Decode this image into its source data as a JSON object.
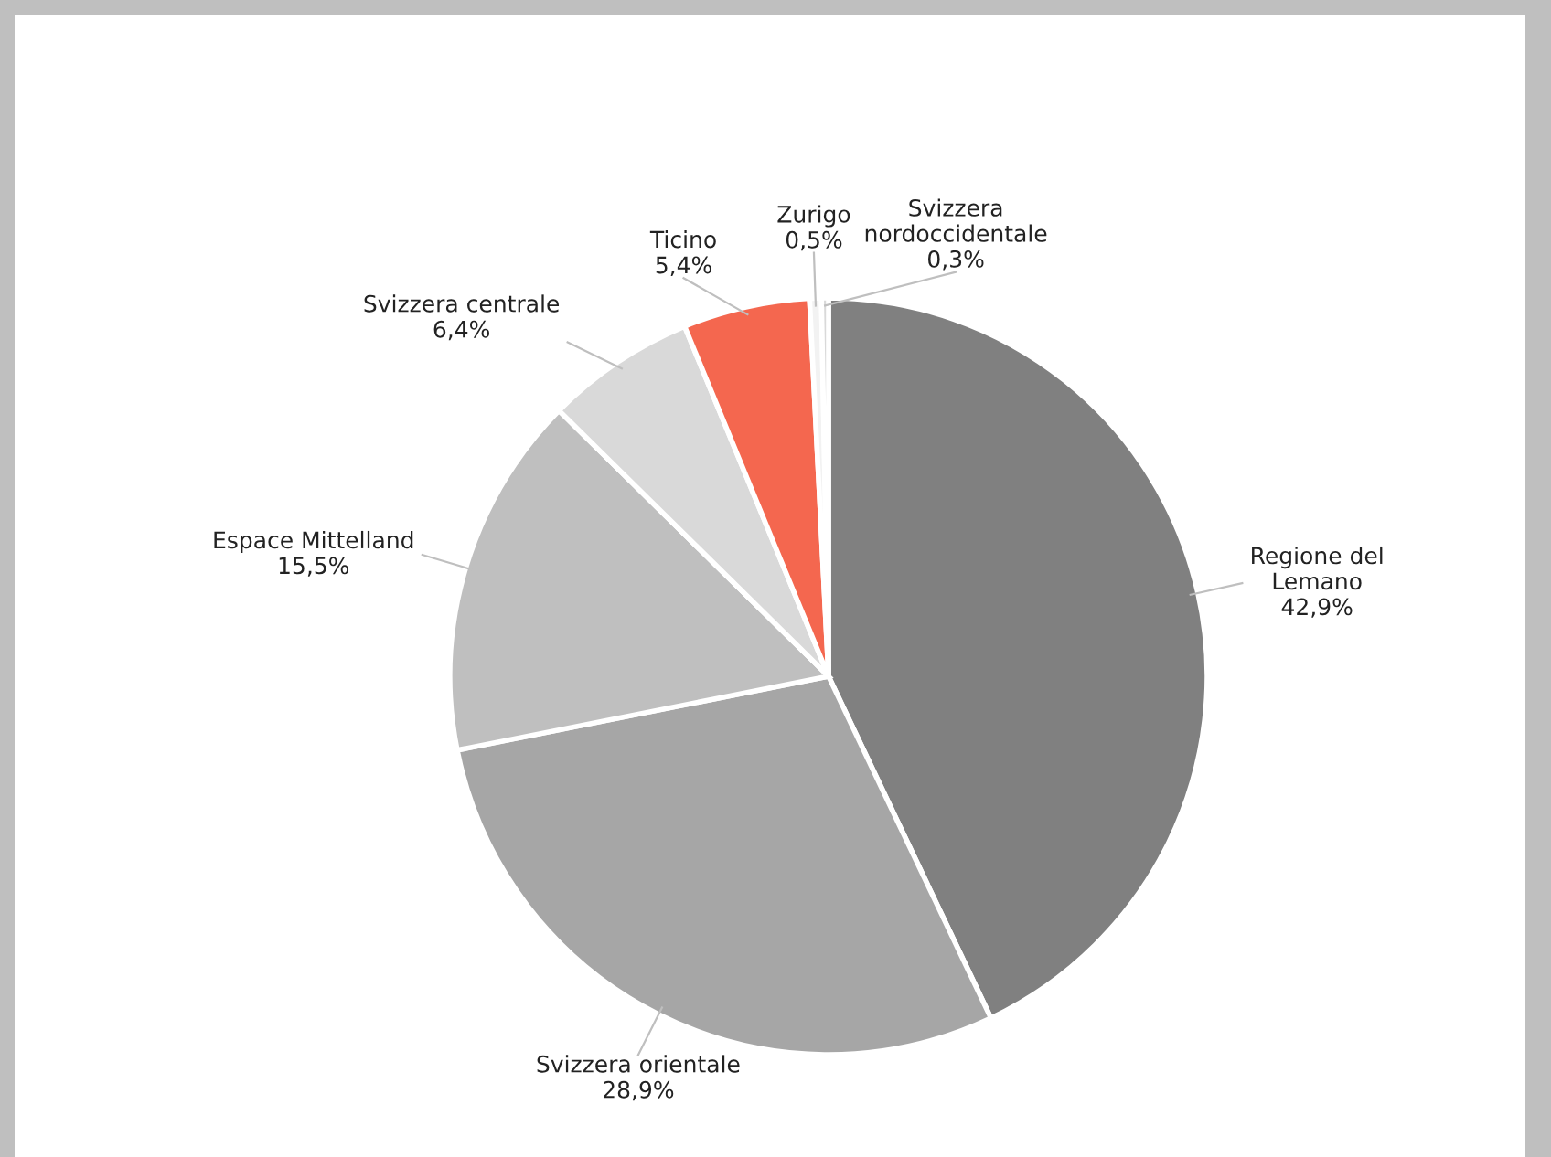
{
  "chart_data": {
    "type": "pie",
    "categories": [
      "Regione del\nLemano",
      "Svizzera orientale",
      "Espace Mittelland",
      "Svizzera centrale",
      "Ticino",
      "Zurigo",
      "Svizzera\nnordoccidentale"
    ],
    "values": [
      42.9,
      28.9,
      15.5,
      6.4,
      5.4,
      0.5,
      0.3
    ],
    "value_labels": [
      "42,9%",
      "28,9%",
      "15,5%",
      "6,4%",
      "5,4%",
      "0,5%",
      "0,3%"
    ],
    "colors": [
      "#808080",
      "#a6a6a6",
      "#bfbfbf",
      "#d9d9d9",
      "#f4674f",
      "#f2f2f2",
      "#d9d9d9"
    ],
    "legend": false
  }
}
